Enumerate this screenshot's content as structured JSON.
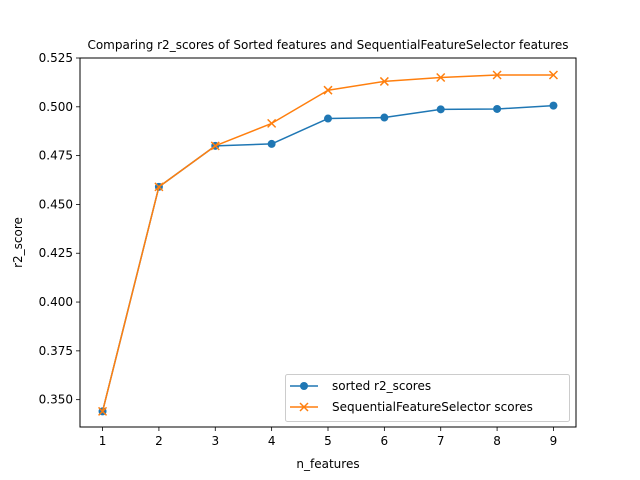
{
  "chart_data": {
    "type": "line",
    "title": "Comparing r2_scores of Sorted features and SequentialFeatureSelector features",
    "xlabel": "n_features",
    "ylabel": "r2_score",
    "x": [
      1,
      2,
      3,
      4,
      5,
      6,
      7,
      8,
      9
    ],
    "x_ticks": [
      "1",
      "2",
      "3",
      "4",
      "5",
      "6",
      "7",
      "8",
      "9"
    ],
    "y_ticks": [
      "0.350",
      "0.375",
      "0.400",
      "0.425",
      "0.450",
      "0.475",
      "0.500",
      "0.525"
    ],
    "xlim": [
      0.6,
      9.4
    ],
    "ylim": [
      0.336,
      0.525
    ],
    "grid": false,
    "legend_position": "lower-right",
    "series": [
      {
        "name": "sorted r2_scores",
        "marker": "circle",
        "color": "#1f77b4",
        "values": [
          0.344,
          0.459,
          0.48,
          0.481,
          0.494,
          0.4945,
          0.4987,
          0.4989,
          0.5006
        ]
      },
      {
        "name": "SequentialFeatureSelector scores",
        "marker": "x",
        "color": "#ff7f0e",
        "values": [
          0.344,
          0.459,
          0.48,
          0.4915,
          0.5085,
          0.513,
          0.515,
          0.5163,
          0.5163
        ]
      }
    ]
  }
}
